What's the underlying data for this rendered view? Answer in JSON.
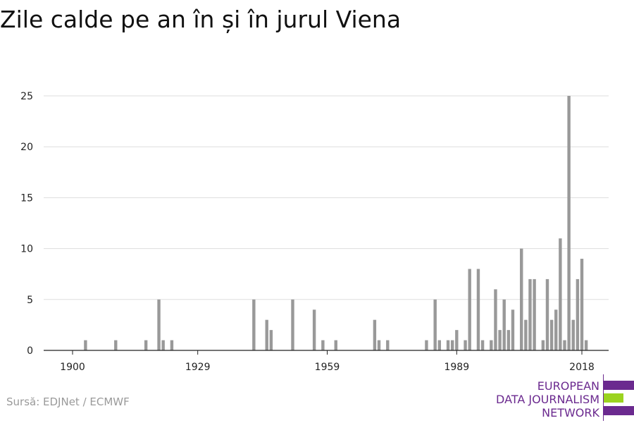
{
  "chart_data": {
    "type": "bar",
    "title": "Zile calde pe an în și în jurul Viena",
    "xlabel": "",
    "ylabel": "",
    "x_range": [
      1900,
      2018
    ],
    "ylim": [
      0,
      25
    ],
    "y_ticks": [
      0,
      5,
      10,
      15,
      20,
      25
    ],
    "x_ticks": [
      "1900",
      "1929",
      "1959",
      "1989",
      "2018"
    ],
    "x_tick_values": [
      1900,
      1929,
      1959,
      1989,
      2018
    ],
    "grid": true,
    "bar_color": "#999999",
    "years": [
      1903,
      1910,
      1917,
      1920,
      1921,
      1923,
      1942,
      1945,
      1946,
      1951,
      1956,
      1958,
      1961,
      1970,
      1971,
      1973,
      1982,
      1984,
      1985,
      1987,
      1988,
      1989,
      1991,
      1992,
      1994,
      1995,
      1997,
      1998,
      1999,
      2000,
      2001,
      2002,
      2004,
      2005,
      2006,
      2007,
      2009,
      2010,
      2011,
      2012,
      2013,
      2014,
      2015,
      2016,
      2017,
      2018,
      2019
    ],
    "values": [
      1,
      1,
      1,
      5,
      1,
      1,
      5,
      3,
      2,
      5,
      4,
      1,
      1,
      3,
      1,
      1,
      1,
      5,
      1,
      1,
      1,
      2,
      1,
      8,
      8,
      1,
      1,
      6,
      2,
      5,
      2,
      4,
      10,
      3,
      7,
      7,
      1,
      7,
      3,
      4,
      11,
      1,
      25,
      3,
      7,
      9,
      1
    ]
  },
  "source": "Sursă: EDJNet / ECMWF",
  "logo": {
    "line1": "EUROPEAN",
    "line2": "DATA JOURNALISM",
    "line3": "NETWORK",
    "purple": "#6b2a8f",
    "green": "#9bd31f"
  }
}
